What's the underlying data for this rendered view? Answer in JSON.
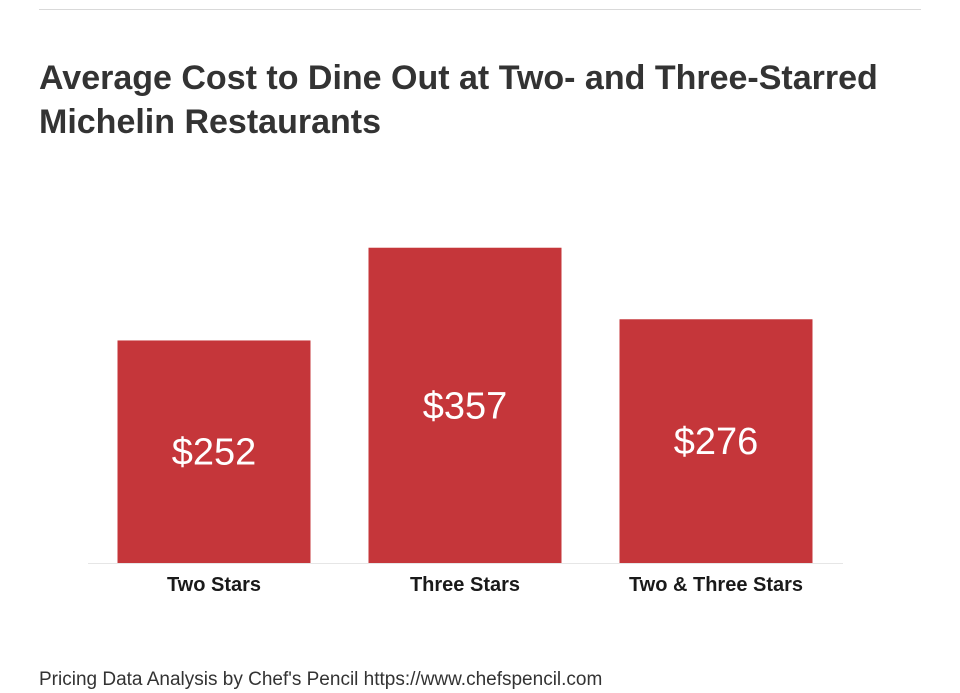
{
  "title": "Average Cost to Dine Out at Two- and Three-Starred Michelin Restaurants",
  "footer": "Pricing Data Analysis by Chef's Pencil https://www.chefspencil.com",
  "colors": {
    "bar": "#c5363a",
    "axis": "#e6e6e6",
    "text": "#333333"
  },
  "chart_data": {
    "type": "bar",
    "title": "Average Cost to Dine Out at Two- and Three-Starred Michelin Restaurants",
    "categories": [
      "Two Stars",
      "Three Stars",
      "Two & Three Stars"
    ],
    "values": [
      252,
      357,
      276
    ],
    "value_labels": [
      "$252",
      "$357",
      "$276"
    ],
    "xlabel": "",
    "ylabel": "",
    "ylim": [
      0,
      385
    ],
    "grid": false,
    "legend": "none"
  }
}
